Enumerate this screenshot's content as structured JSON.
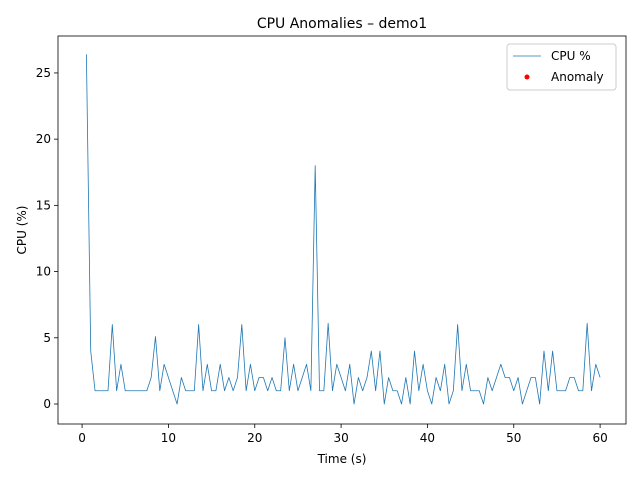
{
  "chart_data": {
    "type": "line",
    "title": "CPU Anomalies – demo1",
    "x_label": "Time (s)",
    "y_label": "CPU (%)",
    "x": [
      0.5,
      1,
      1.5,
      2,
      2.5,
      3,
      3.5,
      4,
      4.5,
      5,
      5.5,
      6,
      6.5,
      7,
      7.5,
      8,
      8.5,
      9,
      9.5,
      10,
      10.5,
      11,
      11.5,
      12,
      12.5,
      13,
      13.5,
      14,
      14.5,
      15,
      15.5,
      16,
      16.5,
      17,
      17.5,
      18,
      18.5,
      19,
      19.5,
      20,
      20.5,
      21,
      21.5,
      22,
      22.5,
      23,
      23.5,
      24,
      24.5,
      25,
      25.5,
      26,
      26.5,
      27,
      27.5,
      28,
      28.5,
      29,
      29.5,
      30,
      30.5,
      31,
      31.5,
      32,
      32.5,
      33,
      33.5,
      34,
      34.5,
      35,
      35.5,
      36,
      36.5,
      37,
      37.5,
      38,
      38.5,
      39,
      39.5,
      40,
      40.5,
      41,
      41.5,
      42,
      42.5,
      43,
      43.5,
      44,
      44.5,
      45,
      45.5,
      46,
      46.5,
      47,
      47.5,
      48,
      48.5,
      49,
      49.5,
      50,
      50.5,
      51,
      51.5,
      52,
      52.5,
      53,
      53.5,
      54,
      54.5,
      55,
      55.5,
      56,
      56.5,
      57,
      57.5,
      58,
      58.5,
      59,
      59.5,
      60
    ],
    "series": [
      {
        "name": "CPU %",
        "color": "#1f77b4",
        "values": [
          26.4,
          4,
          1,
          1,
          1,
          1,
          6,
          1,
          3,
          1,
          1,
          1,
          1,
          1,
          1,
          2,
          5.1,
          1,
          3,
          2,
          1,
          0,
          2,
          1,
          1,
          1,
          6,
          1,
          3,
          1,
          1,
          3,
          1,
          2,
          1,
          2,
          6,
          1,
          3,
          1,
          2,
          2,
          1,
          2,
          1,
          1,
          5,
          1,
          3,
          1,
          2,
          3,
          1,
          18,
          1,
          1,
          6.1,
          1,
          3,
          2,
          1,
          3,
          0,
          2,
          1,
          2,
          4,
          1,
          4,
          0,
          2,
          1,
          1,
          0,
          2,
          0,
          4,
          1,
          3,
          1,
          0,
          2,
          1,
          3,
          0,
          1,
          6,
          1,
          3,
          1,
          1,
          1,
          0,
          2,
          1,
          2,
          3,
          2,
          2,
          1,
          2,
          0,
          1,
          2,
          2,
          0,
          4,
          1,
          4,
          1,
          1,
          1,
          2,
          2,
          1,
          1,
          6.1,
          1,
          3,
          2
        ]
      },
      {
        "name": "Anomaly",
        "color": "#ff0000",
        "marker": "scatter",
        "x": [],
        "values": []
      }
    ],
    "xlim": [
      -2.79,
      63.0
    ],
    "ylim": [
      -1.51,
      27.79
    ],
    "xticks": [
      0,
      10,
      20,
      30,
      40,
      50,
      60
    ],
    "yticks": [
      0,
      5,
      10,
      15,
      20,
      25
    ],
    "legend": "upper right"
  }
}
